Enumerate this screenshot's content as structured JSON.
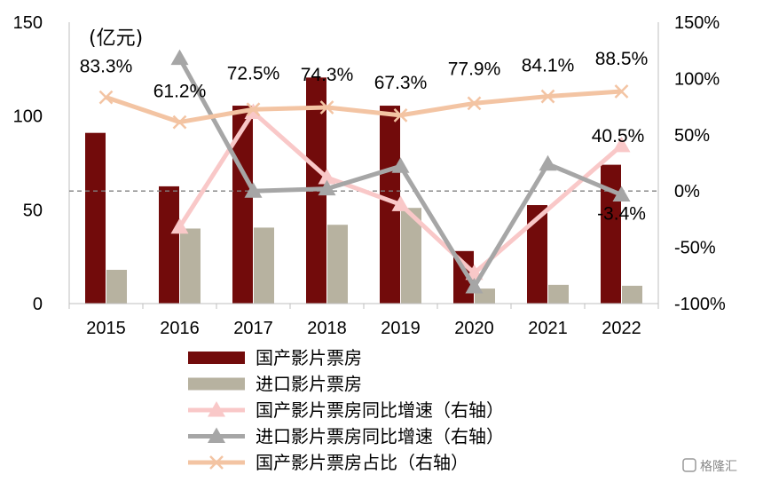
{
  "chart_data": {
    "type": "bar",
    "categories": [
      "2015",
      "2016",
      "2017",
      "2018",
      "2019",
      "2020",
      "2021",
      "2022"
    ],
    "unit": "(亿元)",
    "ylim_left": [
      0,
      150
    ],
    "yticks_left": [
      "0",
      "50",
      "100",
      "150"
    ],
    "ylim_right": [
      -100,
      150
    ],
    "yticks_right": [
      "-100%",
      "-50%",
      "0%",
      "50%",
      "100%",
      "150%"
    ],
    "bar_series": [
      {
        "name": "国产影片票房",
        "color": "#720b0b",
        "values": [
          91,
          62.5,
          105.5,
          120.5,
          105.5,
          28,
          52.5,
          74
        ]
      },
      {
        "name": "进口影片票房",
        "color": "#b7b2a0",
        "values": [
          18,
          40,
          40.5,
          42,
          51,
          8,
          10,
          9.5
        ]
      }
    ],
    "line_series": [
      {
        "name": "国产影片票房同比增速（右轴）",
        "color": "#f9c8c8",
        "marker": "triangle",
        "values": [
          null,
          -32,
          70,
          12,
          -12,
          -73,
          null,
          40.5
        ],
        "labels": [
          null,
          null,
          null,
          null,
          null,
          null,
          null,
          "40.5%"
        ]
      },
      {
        "name": "进口影片票房同比增速（右轴）",
        "color": "#a6a6a6",
        "marker": "triangle",
        "values": [
          null,
          118,
          0,
          2,
          22,
          -85,
          24,
          -3.4
        ],
        "labels": [
          null,
          null,
          null,
          null,
          null,
          null,
          null,
          "-3.4%"
        ]
      },
      {
        "name": "国产影片票房占比（右轴）",
        "color": "#f3c4a3",
        "marker": "x",
        "values": [
          83.3,
          61.2,
          72.5,
          74.3,
          67.3,
          77.9,
          84.1,
          88.5
        ],
        "labels": [
          "83.3%",
          "61.2%",
          "72.5%",
          "74.3%",
          "67.3%",
          "77.9%",
          "84.1%",
          "88.5%"
        ]
      }
    ],
    "zero_line": "dashed",
    "grid": false,
    "legend_position": "bottom"
  },
  "watermark": "格隆汇"
}
